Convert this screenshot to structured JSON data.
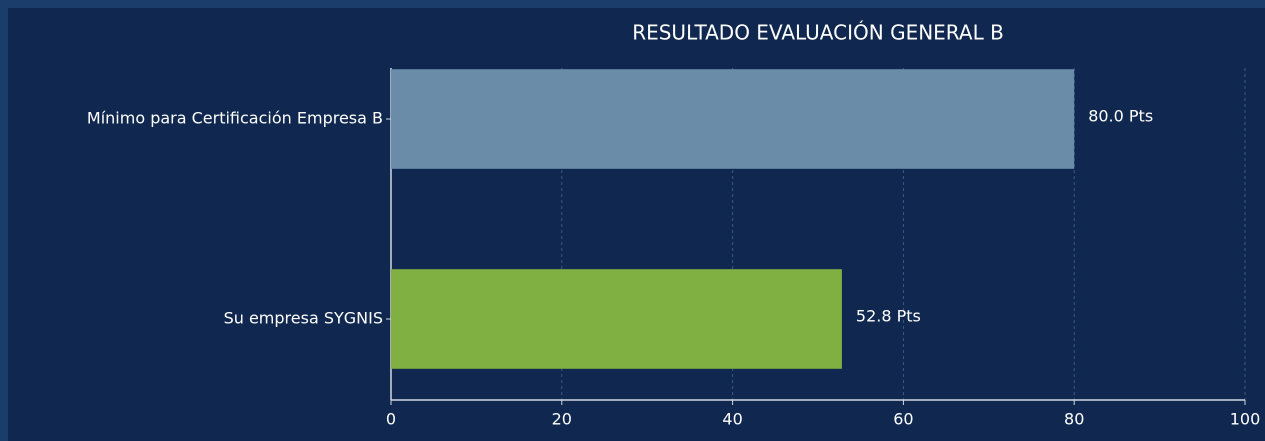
{
  "chart_data": {
    "type": "barh",
    "title": "RESULTADO EVALUACIÓN GENERAL B",
    "categories": [
      "Mínimo para Certificación Empresa B",
      "Su empresa SYGNIS"
    ],
    "values": [
      80.0,
      52.8
    ],
    "value_labels": [
      "80.0 Pts",
      "52.8 Pts"
    ],
    "colors": [
      "#6a8ca8",
      "#7fb041"
    ],
    "xlim": [
      0,
      100
    ],
    "xticks": [
      0,
      20,
      40,
      60,
      80,
      100
    ],
    "grid": true
  }
}
